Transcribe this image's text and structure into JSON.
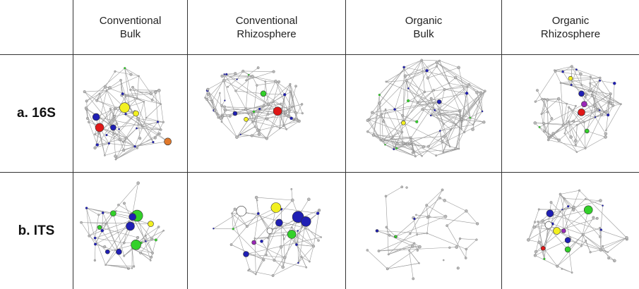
{
  "columns": [
    {
      "line1": "Conventional",
      "line2": "Bulk"
    },
    {
      "line1": "Conventional",
      "line2": "Rhizosphere"
    },
    {
      "line1": "Organic",
      "line2": "Bulk"
    },
    {
      "line1": "Organic",
      "line2": "Rhizosphere"
    }
  ],
  "rows": [
    {
      "label": "a. 16S",
      "density": "dense"
    },
    {
      "label": "b. ITS",
      "density": "sparse"
    }
  ],
  "colors": {
    "edge": "#9a9a9a",
    "node_gray": "#b8b8b8",
    "node_blue": "#1f1fb4",
    "node_green": "#33d12a",
    "node_yellow": "#f2f020",
    "node_red": "#e01818",
    "node_purple": "#9b28b8",
    "node_orange": "#e0782a",
    "node_white": "#ffffff"
  }
}
